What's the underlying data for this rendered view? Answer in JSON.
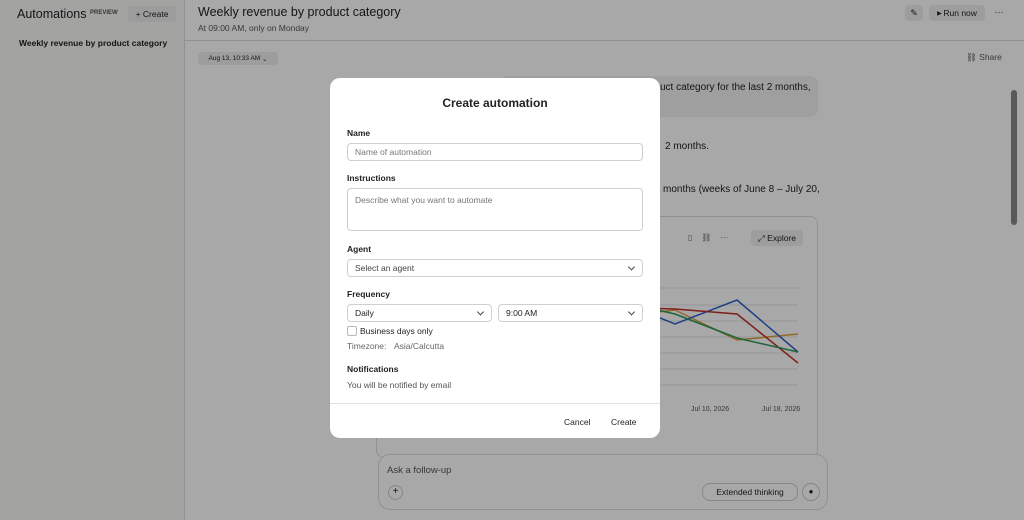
{
  "sidebar": {
    "title": "Automations",
    "badge": "PREVIEW",
    "create_button": "Create",
    "items": [
      "Weekly revenue by product category"
    ]
  },
  "header": {
    "title": "Weekly revenue by product category",
    "subtitle": "At 09:00 AM, only on Monday",
    "run_button": "Run now"
  },
  "conversation": {
    "timestamp": "Aug 13, 10:33 AM",
    "share": "Share",
    "fragments": [
      "uct category for the last 2 months,",
      "2 months.",
      "months (weeks of June 8 – July 20,"
    ],
    "chart_card": {
      "explore": "Explore",
      "x_labels": [
        "Jul 10, 2026",
        "Jul 18, 2026"
      ]
    },
    "input": {
      "placeholder": "Ask a follow-up",
      "extended_thinking": "Extended thinking"
    }
  },
  "modal": {
    "title": "Create automation",
    "name_label": "Name",
    "name_placeholder": "Name of automation",
    "instructions_label": "Instructions",
    "instructions_placeholder": "Describe what you want to automate",
    "agent_label": "Agent",
    "agent_placeholder": "Select an agent",
    "frequency_label": "Frequency",
    "frequency_value": "Daily",
    "time_value": "9:00 AM",
    "business_days": "Business days only",
    "timezone_label": "Timezone:",
    "timezone_value": "Asia/Calcutta",
    "notifications_label": "Notifications",
    "notifications_text": "You will be notified by email",
    "cancel": "Cancel",
    "create": "Create"
  }
}
